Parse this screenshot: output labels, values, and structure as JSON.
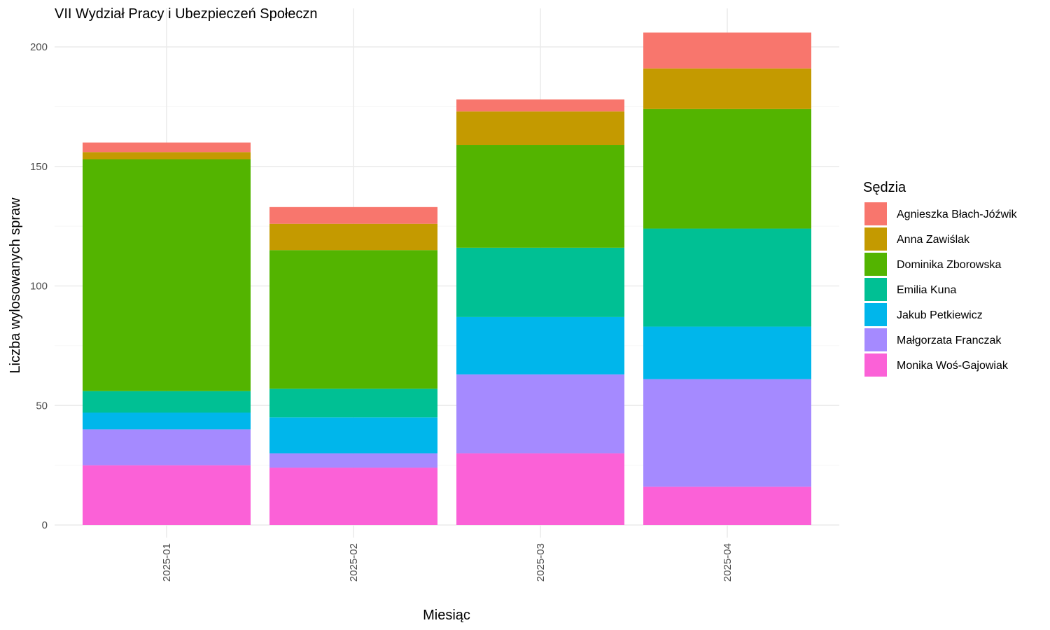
{
  "chart_data": {
    "type": "bar",
    "stacked": true,
    "title": "VII Wydział Pracy i Ubezpieczeń Społeczn",
    "xlabel": "Miesiąc",
    "ylabel": "Liczba wylosowanych spraw",
    "categories": [
      "2025-01",
      "2025-02",
      "2025-03",
      "2025-04"
    ],
    "ylim": [
      0,
      210
    ],
    "yticks": [
      0,
      50,
      100,
      150,
      200
    ],
    "grid": true,
    "legend": {
      "title": "Sędzia",
      "position": "right"
    },
    "series": [
      {
        "name": "Monika Woś-Gajowiak",
        "color": "#FB61D7",
        "values": [
          25,
          24,
          30,
          16
        ]
      },
      {
        "name": "Małgorzata Franczak",
        "color": "#A58AFF",
        "values": [
          15,
          6,
          33,
          45
        ]
      },
      {
        "name": "Jakub Petkiewicz",
        "color": "#00B6EB",
        "values": [
          7,
          15,
          24,
          22
        ]
      },
      {
        "name": "Emilia Kuna",
        "color": "#00C094",
        "values": [
          9,
          12,
          29,
          41
        ]
      },
      {
        "name": "Dominika Zborowska",
        "color": "#53B400",
        "values": [
          97,
          58,
          43,
          50
        ]
      },
      {
        "name": "Anna Zawiślak",
        "color": "#C49A00",
        "values": [
          3,
          11,
          14,
          17
        ]
      },
      {
        "name": "Agnieszka Błach-Jóźwik",
        "color": "#F8766D",
        "values": [
          4,
          7,
          5,
          15
        ]
      }
    ]
  }
}
